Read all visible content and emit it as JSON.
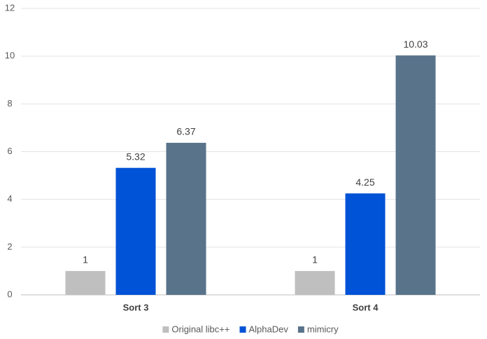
{
  "chart_data": {
    "type": "bar",
    "categories": [
      "Sort 3",
      "Sort 4"
    ],
    "series": [
      {
        "name": "Original libc++",
        "color": "#bfbfbf",
        "values": [
          1,
          1
        ]
      },
      {
        "name": "AlphaDev",
        "color": "#0052d6",
        "values": [
          5.32,
          4.25
        ]
      },
      {
        "name": "mimicry",
        "color": "#58738a",
        "values": [
          6.37,
          10.03
        ]
      }
    ],
    "ylim": [
      0,
      12
    ],
    "yticks": [
      0,
      2,
      4,
      6,
      8,
      10,
      12
    ],
    "grid": true,
    "legend": "bottom"
  }
}
